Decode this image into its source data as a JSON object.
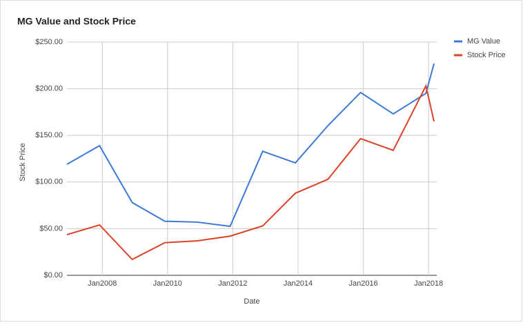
{
  "chart_data": {
    "type": "line",
    "title": "MG Value and Stock Price",
    "x_label": "Date",
    "y_label": "Stock Price",
    "x": [
      "2006-12",
      "2007-12",
      "2008-12",
      "2009-12",
      "2010-12",
      "2011-12",
      "2012-12",
      "2013-12",
      "2014-12",
      "2015-12",
      "2016-12",
      "2017-12",
      "2018-03"
    ],
    "series": [
      {
        "name": "MG Value",
        "color": "#3c78d8",
        "values": [
          119,
          139,
          78,
          58,
          57,
          52.5,
          133,
          120.5,
          160.5,
          196,
          173,
          195,
          227
        ]
      },
      {
        "name": "Stock Price",
        "color": "#dc4125",
        "values": [
          43.6,
          54,
          17,
          35,
          37,
          42,
          53,
          88,
          103,
          146.5,
          134,
          203,
          165
        ]
      }
    ],
    "xlim": [
      "2006-12",
      "2018-04"
    ],
    "xticks": [
      {
        "value": "2008-01",
        "label": "Jan2008"
      },
      {
        "value": "2010-01",
        "label": "Jan2010"
      },
      {
        "value": "2012-01",
        "label": "Jan2012"
      },
      {
        "value": "2014-01",
        "label": "Jan2014"
      },
      {
        "value": "2016-01",
        "label": "Jan2016"
      },
      {
        "value": "2018-01",
        "label": "Jan2018"
      }
    ],
    "ylim": [
      0,
      250
    ],
    "yticks": [
      {
        "value": 0,
        "label": "$0.00"
      },
      {
        "value": 50,
        "label": "$50.00"
      },
      {
        "value": 100,
        "label": "$100.00"
      },
      {
        "value": 150,
        "label": "$150.00"
      },
      {
        "value": 200,
        "label": "$200.00"
      },
      {
        "value": 250,
        "label": "$250.00"
      }
    ],
    "grid": true,
    "legend": "right"
  }
}
